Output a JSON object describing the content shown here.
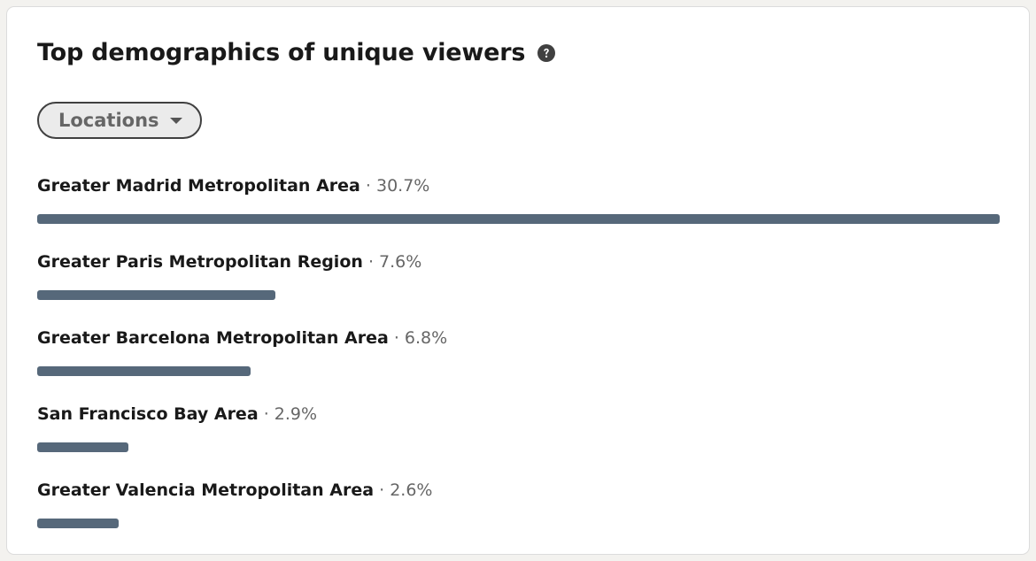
{
  "title": "Top demographics of unique viewers",
  "filter": {
    "label": "Locations"
  },
  "separator": " · ",
  "colors": {
    "bar": "#56687a"
  },
  "rows": [
    {
      "name": "Greater Madrid Metropolitan Area",
      "pct_label": "30.7%",
      "value": 30.7
    },
    {
      "name": "Greater Paris Metropolitan Region",
      "pct_label": "7.6%",
      "value": 7.6
    },
    {
      "name": "Greater Barcelona Metropolitan Area",
      "pct_label": "6.8%",
      "value": 6.8
    },
    {
      "name": "San Francisco Bay Area",
      "pct_label": "2.9%",
      "value": 2.9
    },
    {
      "name": "Greater Valencia Metropolitan Area",
      "pct_label": "2.6%",
      "value": 2.6
    }
  ]
}
